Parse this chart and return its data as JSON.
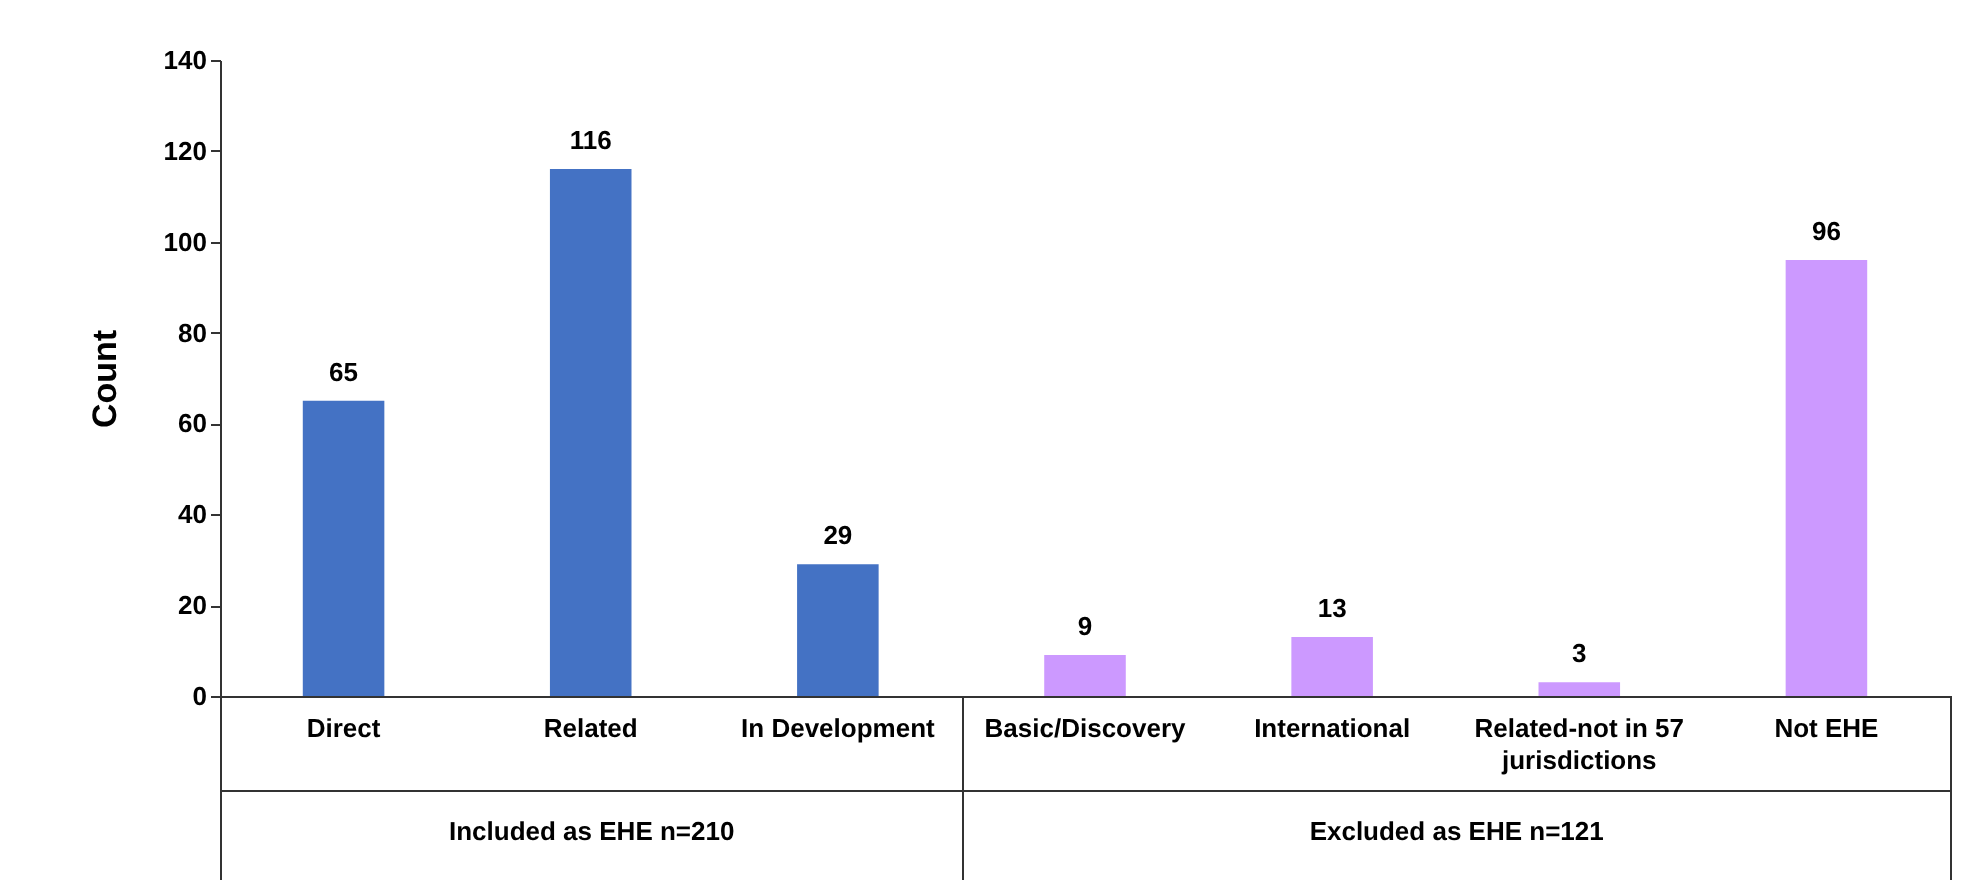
{
  "chart_data": {
    "type": "bar",
    "ylabel": "Count",
    "categories": [
      "Direct",
      "Related",
      "In Development",
      "Basic/Discovery",
      "International",
      "Related-not in 57 jurisdictions",
      "Not EHE"
    ],
    "values": [
      65,
      116,
      29,
      9,
      13,
      3,
      96
    ],
    "colors": [
      "#4472c4",
      "#4472c4",
      "#4472c4",
      "#cc99ff",
      "#cc99ff",
      "#cc99ff",
      "#cc99ff"
    ],
    "ylim": [
      0,
      140
    ],
    "yticks": [
      0,
      20,
      40,
      60,
      80,
      100,
      120,
      140
    ],
    "data_labels": true,
    "grid": false,
    "annotations": [
      "Included as EHE n=210",
      "Excluded as EHE n=121"
    ]
  }
}
